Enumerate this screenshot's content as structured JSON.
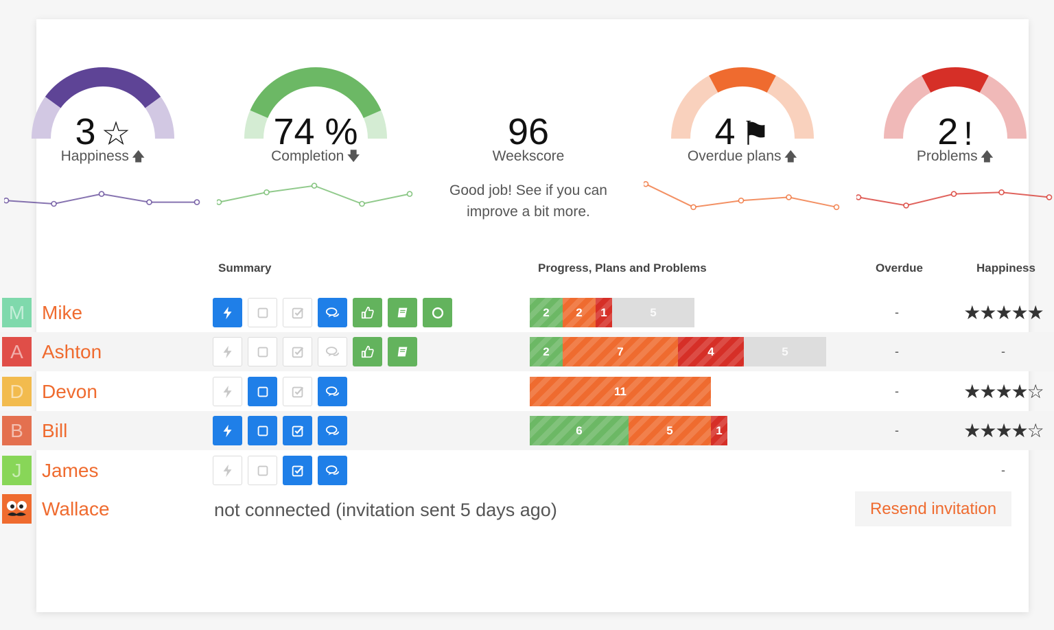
{
  "kpis": {
    "happiness": {
      "value": "3",
      "symbol": "☆",
      "label": "Happiness",
      "trend": "up",
      "trend_glyph": "🡅",
      "gauge_level": 0.6,
      "color": "#5e4496",
      "light_color": "#d2c8e3",
      "spark": [
        0.35,
        0.25,
        0.55,
        0.3,
        0.3
      ]
    },
    "completion": {
      "value": "74 %",
      "label": "Completion",
      "trend": "down",
      "trend_glyph": "🡇",
      "gauge_level": 0.74,
      "color": "#6cb865",
      "light_color": "#d4ecd3",
      "spark": [
        0.3,
        0.6,
        0.8,
        0.25,
        0.55
      ]
    },
    "weekscore": {
      "value": "96",
      "label": "Weekscore",
      "message": "Good job! See if you can improve a bit more."
    },
    "overdue": {
      "value": "4",
      "symbol": "⚑",
      "label": "Overdue plans",
      "trend": "up",
      "trend_glyph": "🡅",
      "gauge_level": 0.4,
      "color": "#ef6b2f",
      "light_color": "#f9d1bd",
      "spark": [
        0.85,
        0.15,
        0.35,
        0.45,
        0.15
      ]
    },
    "problems": {
      "value": "2",
      "symbol": "!",
      "label": "Problems",
      "trend": "up",
      "trend_glyph": "🡅",
      "gauge_level": 0.4,
      "color": "#d62f27",
      "light_color": "#f0b9b8",
      "spark": [
        0.45,
        0.2,
        0.55,
        0.6,
        0.45
      ]
    }
  },
  "table": {
    "headers": {
      "summary": "Summary",
      "progress": "Progress, Plans and Problems",
      "overdue": "Overdue",
      "happiness": "Happiness"
    },
    "rows": [
      {
        "initial": "M",
        "name": "Mike",
        "avatar_color": "#7fd9ac",
        "icons": [
          [
            "bolt-icon",
            "blue"
          ],
          [
            "square-icon",
            "off"
          ],
          [
            "checkbox-icon",
            "off"
          ],
          [
            "chat-icon",
            "blue"
          ],
          [
            "thumbs-up-icon",
            "green"
          ],
          [
            "book-icon",
            "green"
          ],
          [
            "circle-icon",
            "green"
          ]
        ],
        "bar": [
          [
            "g",
            "2"
          ],
          [
            "o",
            "2"
          ],
          [
            "r",
            "1"
          ],
          [
            "gr",
            "5"
          ]
        ],
        "overdue": "-",
        "stars": "★★★★★",
        "stars_count": 5
      },
      {
        "initial": "A",
        "name": "Ashton",
        "avatar_color": "#e04e48",
        "icons": [
          [
            "bolt-icon",
            "off"
          ],
          [
            "square-icon",
            "off"
          ],
          [
            "checkbox-icon",
            "off"
          ],
          [
            "chat-icon",
            "off"
          ],
          [
            "thumbs-up-icon",
            "green"
          ],
          [
            "book-icon",
            "green"
          ]
        ],
        "bar": [
          [
            "g",
            "2"
          ],
          [
            "o",
            "7"
          ],
          [
            "r",
            "4"
          ],
          [
            "gr",
            "5"
          ]
        ],
        "overdue": "-",
        "stars": "-",
        "stars_count": 0
      },
      {
        "initial": "D",
        "name": "Devon",
        "avatar_color": "#f2bb4e",
        "icons": [
          [
            "bolt-icon",
            "off"
          ],
          [
            "square-icon",
            "blue"
          ],
          [
            "checkbox-icon",
            "off"
          ],
          [
            "chat-icon",
            "blue"
          ]
        ],
        "bar": [
          [
            "o",
            "11"
          ]
        ],
        "overdue": "-",
        "stars": "★★★★☆",
        "stars_count": 4
      },
      {
        "initial": "B",
        "name": "Bill",
        "avatar_color": "#e4704f",
        "icons": [
          [
            "bolt-icon",
            "blue"
          ],
          [
            "square-icon",
            "blue"
          ],
          [
            "checkbox-icon",
            "blue"
          ],
          [
            "chat-icon",
            "blue"
          ]
        ],
        "bar": [
          [
            "g",
            "6"
          ],
          [
            "o",
            "5"
          ],
          [
            "r",
            "1"
          ]
        ],
        "overdue": "-",
        "stars": "★★★★☆",
        "stars_count": 4
      },
      {
        "initial": "J",
        "name": "James",
        "avatar_color": "#88d658",
        "icons": [
          [
            "bolt-icon",
            "off"
          ],
          [
            "square-icon",
            "off"
          ],
          [
            "checkbox-icon",
            "blue"
          ],
          [
            "chat-icon",
            "blue"
          ]
        ],
        "bar": [],
        "overdue": "",
        "stars": "-",
        "stars_count": 0
      }
    ],
    "pending": {
      "name": "Wallace",
      "avatar_color": "#ef6b2f",
      "status": "not connected (invitation sent 5 days ago)",
      "action": "Resend invitation"
    }
  }
}
